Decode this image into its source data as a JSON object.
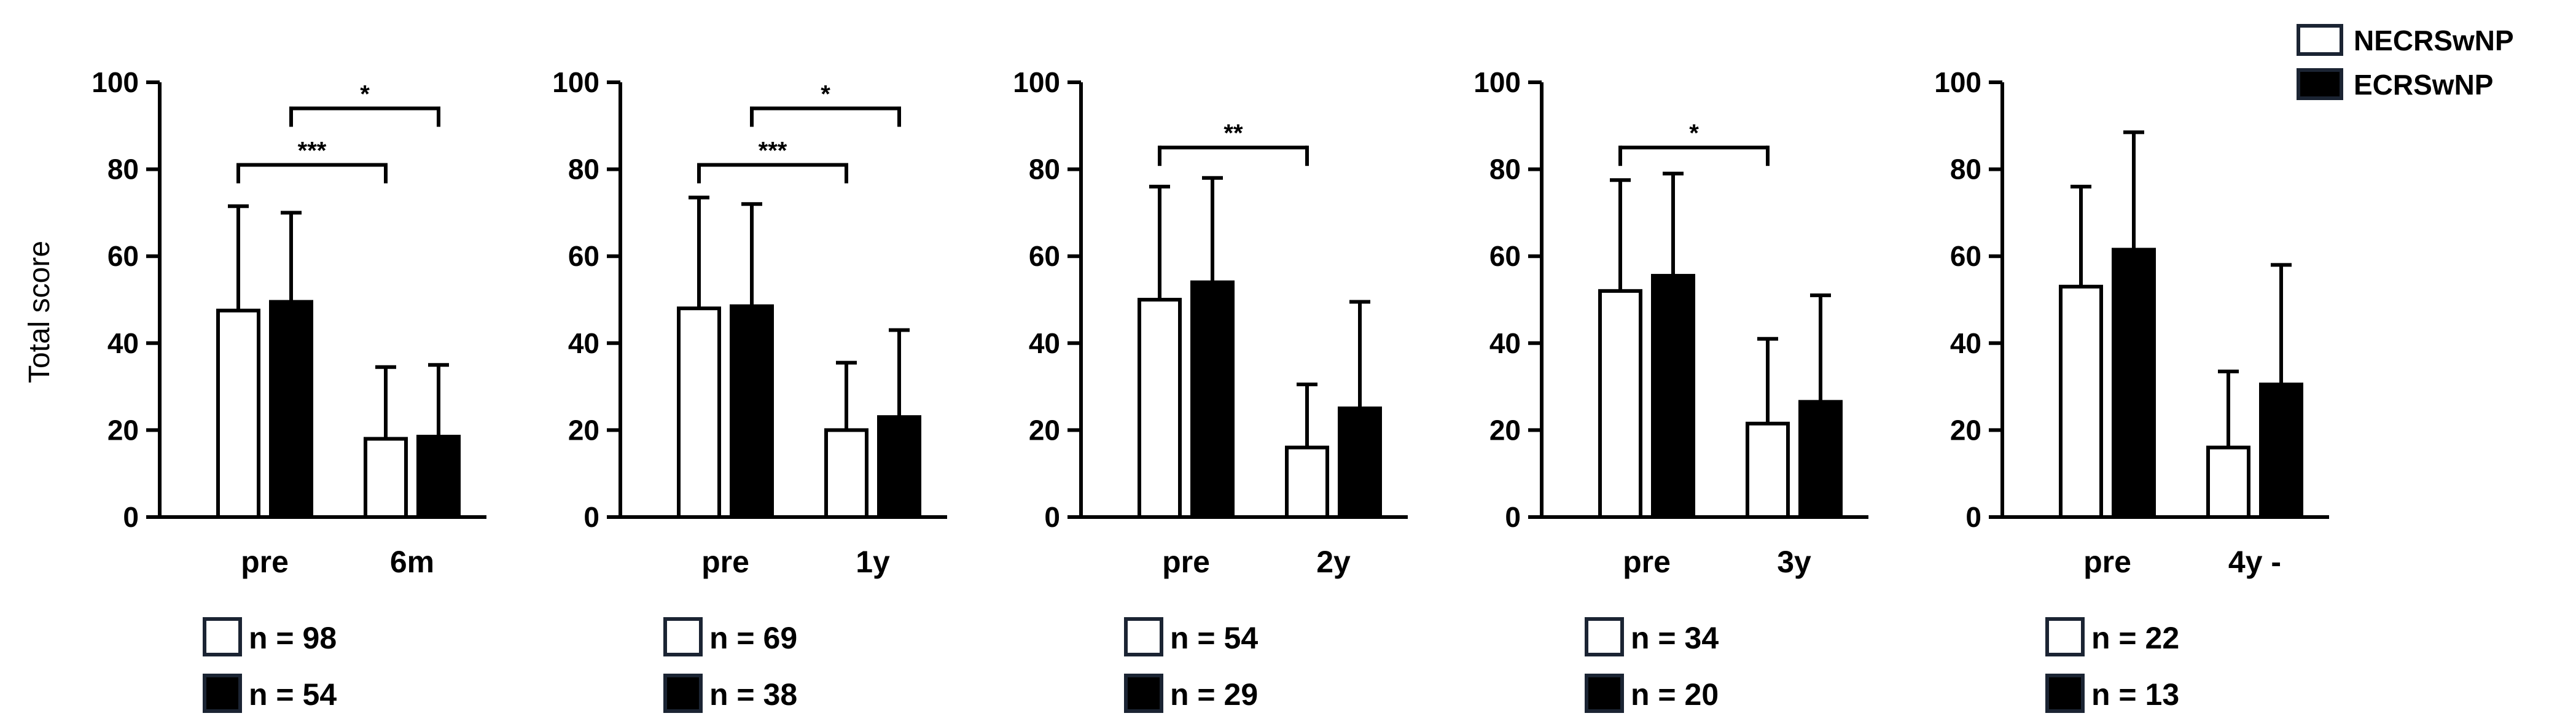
{
  "legend": {
    "items": [
      {
        "label": "NECRSwNP",
        "color": "#ffffff"
      },
      {
        "label": "ECRSwNP",
        "color": "#000000"
      }
    ]
  },
  "y_axis_label": "Total score",
  "chart_data": [
    {
      "type": "bar",
      "categories": [
        "pre",
        "6m"
      ],
      "series": [
        {
          "name": "NECRSwNP",
          "values": [
            47.5,
            18
          ],
          "errors": [
            24,
            16.5
          ],
          "color": "#ffffff"
        },
        {
          "name": "ECRSwNP",
          "values": [
            49.5,
            18.5
          ],
          "errors": [
            20.5,
            16.5
          ],
          "color": "#000000"
        }
      ],
      "ylabel": "Total score",
      "ylim": [
        0,
        100
      ],
      "yticks": [
        0,
        20,
        40,
        60,
        80,
        100
      ],
      "significance": [
        {
          "label": "***",
          "from": [
            0,
            0
          ],
          "to": [
            1,
            0
          ],
          "y": 81
        },
        {
          "label": "*",
          "from": [
            0,
            1
          ],
          "to": [
            1,
            1
          ],
          "y": 94
        }
      ],
      "n_labels": [
        "n = 98",
        "n = 54"
      ]
    },
    {
      "type": "bar",
      "categories": [
        "pre",
        "1y"
      ],
      "series": [
        {
          "name": "NECRSwNP",
          "values": [
            48,
            20
          ],
          "errors": [
            25.5,
            15.5
          ],
          "color": "#ffffff"
        },
        {
          "name": "ECRSwNP",
          "values": [
            48.5,
            23
          ],
          "errors": [
            23.5,
            20
          ],
          "color": "#000000"
        }
      ],
      "ylabel": "",
      "ylim": [
        0,
        100
      ],
      "yticks": [
        0,
        20,
        40,
        60,
        80,
        100
      ],
      "significance": [
        {
          "label": "***",
          "from": [
            0,
            0
          ],
          "to": [
            1,
            0
          ],
          "y": 81
        },
        {
          "label": "*",
          "from": [
            0,
            1
          ],
          "to": [
            1,
            1
          ],
          "y": 94
        }
      ],
      "n_labels": [
        "n = 69",
        "n = 38"
      ]
    },
    {
      "type": "bar",
      "categories": [
        "pre",
        "2y"
      ],
      "series": [
        {
          "name": "NECRSwNP",
          "values": [
            50,
            16
          ],
          "errors": [
            26,
            14.5
          ],
          "color": "#ffffff"
        },
        {
          "name": "ECRSwNP",
          "values": [
            54,
            25
          ],
          "errors": [
            24,
            24.5
          ],
          "color": "#000000"
        }
      ],
      "ylabel": "",
      "ylim": [
        0,
        100
      ],
      "yticks": [
        0,
        20,
        40,
        60,
        80,
        100
      ],
      "significance": [
        {
          "label": "**",
          "from": [
            0,
            0
          ],
          "to": [
            1,
            0
          ],
          "y": 85
        }
      ],
      "n_labels": [
        "n = 54",
        "n = 29"
      ]
    },
    {
      "type": "bar",
      "categories": [
        "pre",
        "3y"
      ],
      "series": [
        {
          "name": "NECRSwNP",
          "values": [
            52,
            21.5
          ],
          "errors": [
            25.5,
            19.5
          ],
          "color": "#ffffff"
        },
        {
          "name": "ECRSwNP",
          "values": [
            55.5,
            26.5
          ],
          "errors": [
            23.5,
            24.5
          ],
          "color": "#000000"
        }
      ],
      "ylabel": "",
      "ylim": [
        0,
        100
      ],
      "yticks": [
        0,
        20,
        40,
        60,
        80,
        100
      ],
      "significance": [
        {
          "label": "*",
          "from": [
            0,
            0
          ],
          "to": [
            1,
            0
          ],
          "y": 85
        }
      ],
      "n_labels": [
        "n = 34",
        "n = 20"
      ]
    },
    {
      "type": "bar",
      "categories": [
        "pre",
        "4y -"
      ],
      "series": [
        {
          "name": "NECRSwNP",
          "values": [
            53,
            16
          ],
          "errors": [
            23,
            17.5
          ],
          "color": "#ffffff"
        },
        {
          "name": "ECRSwNP",
          "values": [
            61.5,
            30.5
          ],
          "errors": [
            27,
            27.5
          ],
          "color": "#000000"
        }
      ],
      "ylabel": "",
      "ylim": [
        0,
        100
      ],
      "yticks": [
        0,
        20,
        40,
        60,
        80,
        100
      ],
      "significance": [],
      "n_labels": [
        "n = 22",
        "n = 13"
      ]
    }
  ]
}
